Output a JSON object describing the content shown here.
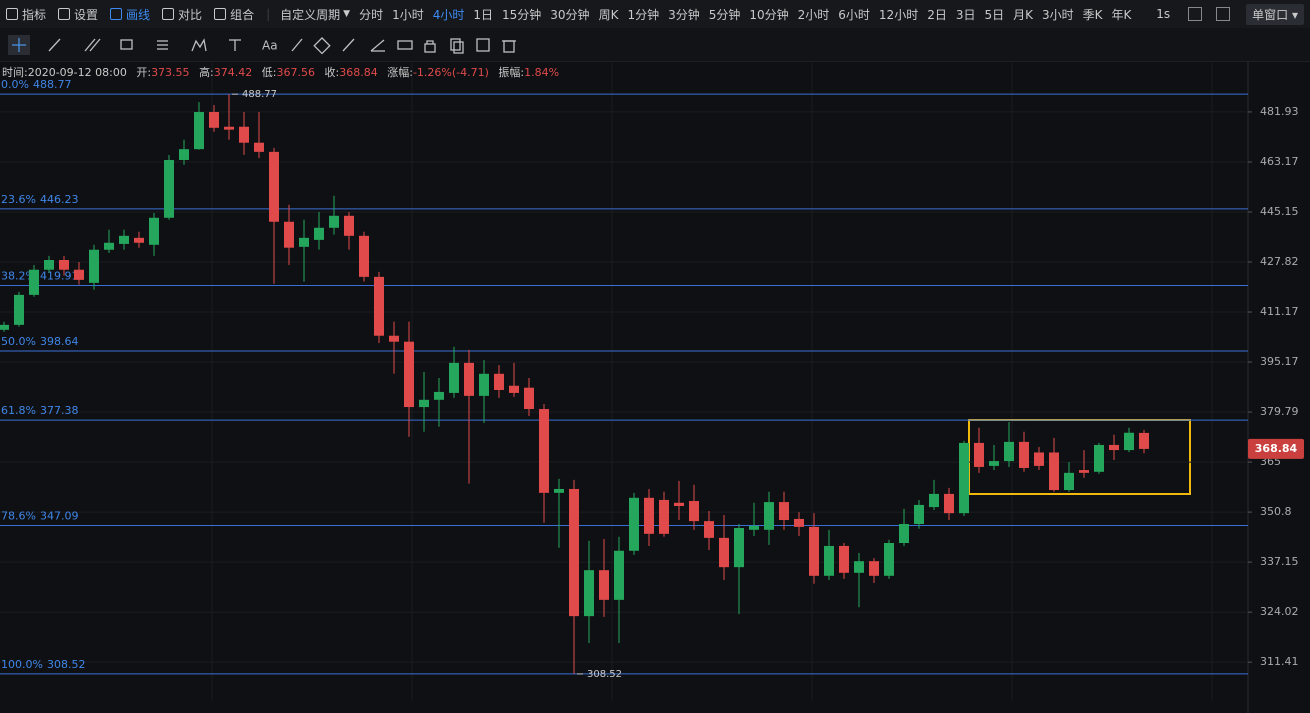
{
  "toolbar": {
    "tools": [
      "指标",
      "设置",
      "画线",
      "对比",
      "组合"
    ],
    "active_tool": 2,
    "custom_period": "自定义周期",
    "periods": [
      "分时",
      "1小时",
      "4小时",
      "1日",
      "15分钟",
      "30分钟",
      "周K",
      "1分钟",
      "3分钟",
      "5分钟",
      "10分钟",
      "2小时",
      "6小时",
      "12小时",
      "2日",
      "3日",
      "5日",
      "月K",
      "3小时",
      "季K",
      "年K"
    ],
    "active_period": 2,
    "refresh": "1s",
    "window_mode": "单窗口"
  },
  "drawing_toolbar": {
    "text_tool": "Aa"
  },
  "chart_data": {
    "type": "candlestick",
    "info": {
      "time_label": "时间:",
      "time": "2020-09-12 08:00",
      "open_label": "开:",
      "high_label": "高:",
      "low_label": "低:",
      "close_label": "收:",
      "change_label": "涨幅:",
      "change": "-1.26%(-4.71)",
      "amplitude_label": "振幅:",
      "amplitude": "1.84%"
    },
    "candles": {
      "open": [
        405.4,
        407.0,
        416.8,
        425.2,
        428.5,
        425.2,
        420.8,
        432.0,
        434.0,
        436.1,
        433.7,
        443.1,
        463.9,
        467.9,
        481.9,
        476.3,
        476.3,
        470.3,
        466.9,
        441.7,
        433.0,
        435.4,
        439.6,
        443.8,
        436.8,
        422.8,
        403.5,
        401.6,
        381.3,
        383.5,
        385.6,
        394.9,
        384.7,
        391.5,
        387.8,
        387.2,
        380.7,
        356.2,
        357.3,
        323.0,
        335.0,
        327.2,
        340.2,
        354.8,
        354.2,
        353.4,
        353.9,
        348.3,
        343.7,
        335.8,
        345.9,
        345.9,
        353.6,
        348.9,
        346.7,
        333.5,
        341.5,
        334.3,
        337.4,
        333.5,
        342.3,
        347.5,
        352.2,
        355.9,
        350.5,
        370.6,
        363.9,
        365.3,
        370.9,
        367.8,
        367.8,
        357.0,
        362.7,
        362.2,
        370.0,
        368.5,
        373.55
      ],
      "high": [
        408.0,
        417.8,
        426.8,
        429.9,
        429.9,
        427.8,
        433.7,
        438.9,
        438.9,
        438.2,
        444.8,
        465.8,
        471.4,
        485.7,
        484.6,
        488.77,
        481.9,
        481.9,
        468.4,
        447.7,
        442.4,
        445.15,
        450.9,
        445.15,
        438.2,
        424.5,
        408.0,
        408.0,
        392.1,
        390.2,
        400.0,
        399.0,
        395.8,
        394.2,
        394.9,
        390.2,
        382.2,
        360.2,
        359.9,
        342.9,
        343.4,
        344.0,
        356.2,
        357.3,
        356.5,
        359.6,
        358.5,
        351.1,
        350.0,
        347.5,
        353.4,
        356.5,
        356.5,
        350.8,
        350.5,
        345.9,
        342.3,
        339.6,
        338.2,
        343.2,
        351.7,
        354.2,
        359.9,
        357.6,
        371.2,
        375.1,
        370.0,
        376.8,
        373.9,
        369.4,
        372.1,
        365.0,
        368.5,
        370.6,
        373.0,
        375.1,
        374.42
      ],
      "low": [
        404.8,
        406.4,
        416.2,
        424.2,
        423.2,
        420.2,
        418.5,
        430.9,
        432.0,
        432.7,
        429.9,
        442.4,
        462.1,
        467.7,
        474.4,
        471.4,
        465.8,
        464.6,
        420.5,
        426.8,
        421.2,
        432.0,
        437.2,
        432.0,
        421.2,
        401.2,
        391.5,
        372.4,
        373.9,
        375.4,
        384.1,
        358.8,
        376.5,
        384.1,
        384.4,
        378.6,
        347.8,
        341.0,
        308.52,
        316.2,
        322.8,
        316.2,
        339.1,
        341.5,
        344.0,
        348.6,
        345.9,
        340.4,
        332.4,
        323.5,
        344.2,
        341.8,
        345.9,
        344.2,
        331.4,
        332.4,
        332.7,
        325.3,
        331.6,
        332.7,
        341.5,
        346.2,
        351.4,
        348.6,
        349.7,
        361.9,
        362.7,
        363.6,
        362.2,
        362.7,
        356.5,
        356.5,
        360.5,
        361.6,
        365.6,
        367.9,
        367.56
      ],
      "close": [
        407.0,
        416.8,
        425.2,
        428.5,
        425.2,
        421.8,
        432.0,
        434.4,
        436.8,
        434.4,
        443.1,
        463.9,
        467.9,
        481.9,
        475.9,
        475.2,
        470.3,
        466.9,
        441.7,
        432.7,
        436.1,
        439.6,
        443.8,
        436.8,
        422.8,
        403.5,
        401.6,
        381.3,
        383.5,
        385.9,
        394.9,
        384.7,
        391.5,
        386.5,
        385.6,
        380.7,
        356.2,
        357.3,
        323.0,
        335.0,
        327.2,
        340.2,
        354.8,
        344.8,
        344.8,
        352.5,
        348.3,
        343.7,
        335.8,
        346.4,
        347.0,
        353.6,
        348.6,
        346.7,
        333.5,
        341.5,
        334.3,
        337.4,
        333.5,
        342.3,
        347.5,
        352.8,
        355.9,
        350.5,
        370.6,
        363.6,
        365.3,
        370.9,
        363.3,
        363.9,
        357.0,
        361.9,
        361.9,
        370.0,
        368.5,
        373.6,
        368.84
      ]
    },
    "up_color": "#24a65c",
    "down_color": "#e04a4a",
    "ylim": [
      302.2,
      494.3
    ],
    "ylog": true,
    "yticks": [
      311.41,
      324.02,
      337.15,
      350.8,
      365.0,
      379.79,
      395.17,
      411.17,
      427.82,
      445.15,
      463.17,
      481.93
    ],
    "grid": true,
    "fib": {
      "color": "#3a6fd6",
      "levels": [
        {
          "ratio": "0.0%",
          "value": 488.77
        },
        {
          "ratio": "23.6%",
          "value": 446.23
        },
        {
          "ratio": "38.2%",
          "value": 419.91
        },
        {
          "ratio": "50.0%",
          "value": 398.64
        },
        {
          "ratio": "61.8%",
          "value": 377.38
        },
        {
          "ratio": "78.6%",
          "value": 347.09
        },
        {
          "ratio": "100.0%",
          "value": 308.52
        }
      ]
    },
    "high_marker": 488.77,
    "low_marker": 308.52
  }
}
